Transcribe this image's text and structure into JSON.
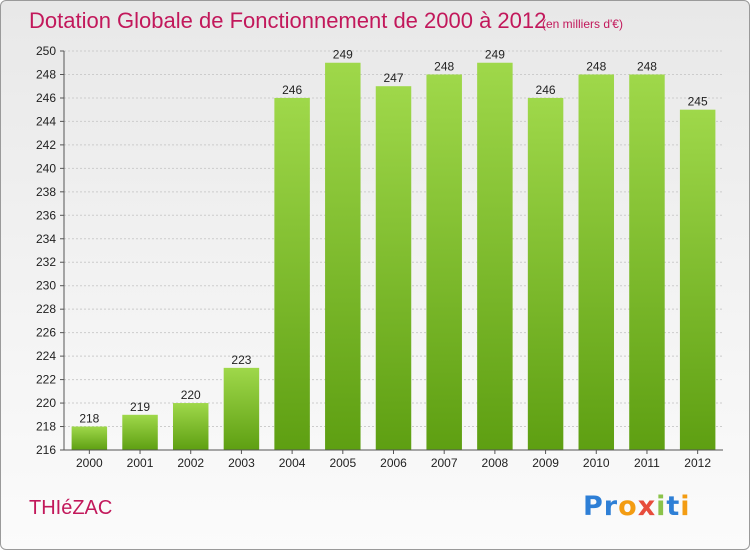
{
  "header": {
    "title": "Dotation Globale de Fonctionnement de 2000 à 2012",
    "subtitle": "(en milliers d'€)"
  },
  "footer": {
    "commune": "THIéZAC",
    "logo": [
      "P",
      "r",
      "o",
      "x",
      "i",
      "t",
      "i"
    ],
    "logo_colors": [
      "#2e7fd6",
      "#2e7fd6",
      "#f39c12",
      "#e74c3c",
      "#8bc34a",
      "#2e7fd6",
      "#f39c12"
    ]
  },
  "colors": {
    "accent": "#c2185b",
    "bar_top": "#9fd84a",
    "bar_bottom": "#5e9f12",
    "grid": "#cccccc"
  },
  "chart_data": {
    "type": "bar",
    "categories": [
      "2000",
      "2001",
      "2002",
      "2003",
      "2004",
      "2005",
      "2006",
      "2007",
      "2008",
      "2009",
      "2010",
      "2011",
      "2012"
    ],
    "values": [
      218,
      219,
      220,
      223,
      246,
      249,
      247,
      248,
      249,
      246,
      248,
      248,
      245
    ],
    "ylim": [
      216,
      250
    ],
    "ytick_step": 2,
    "grid": true,
    "xlabel": "",
    "ylabel": ""
  }
}
